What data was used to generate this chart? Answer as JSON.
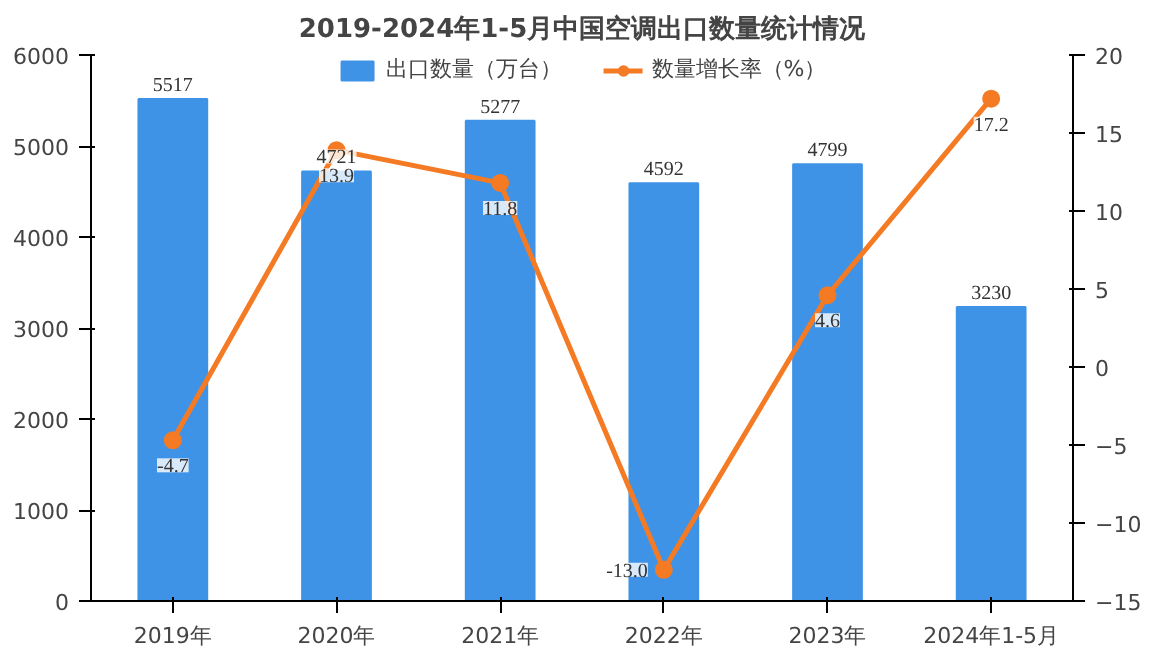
{
  "chart_data": {
    "type": "bar",
    "title": "2019-2024年1-5月中国空调出口数量统计情况",
    "categories": [
      "2019年",
      "2020年",
      "2021年",
      "2022年",
      "2023年",
      "2024年1-5月"
    ],
    "series": [
      {
        "name": "出口数量（万台）",
        "color": "#3f93e6",
        "values": [
          5517,
          4721,
          5277,
          4592,
          4799,
          3230
        ],
        "value_labels": [
          "5517",
          "4721",
          "5277",
          "4592",
          "4799",
          "3230"
        ]
      },
      {
        "name": "数量增长率（%）",
        "type": "line",
        "axis": "y2",
        "color": "#f47a24",
        "marker": "circle",
        "values": [
          -4.7,
          13.9,
          11.8,
          -13.0,
          4.6,
          17.2
        ],
        "value_labels": [
          "-4.7",
          "13.9",
          "11.8",
          "-13.0",
          "4.6",
          "17.2"
        ]
      }
    ],
    "ylim": [
      0,
      6000
    ],
    "yticks": [
      0,
      1000,
      2000,
      3000,
      4000,
      5000,
      6000
    ],
    "y2lim": [
      -15,
      20
    ],
    "y2ticks": [
      -15,
      -10,
      -5,
      0,
      5,
      10,
      15,
      20
    ],
    "grid": false,
    "legend": "top"
  }
}
